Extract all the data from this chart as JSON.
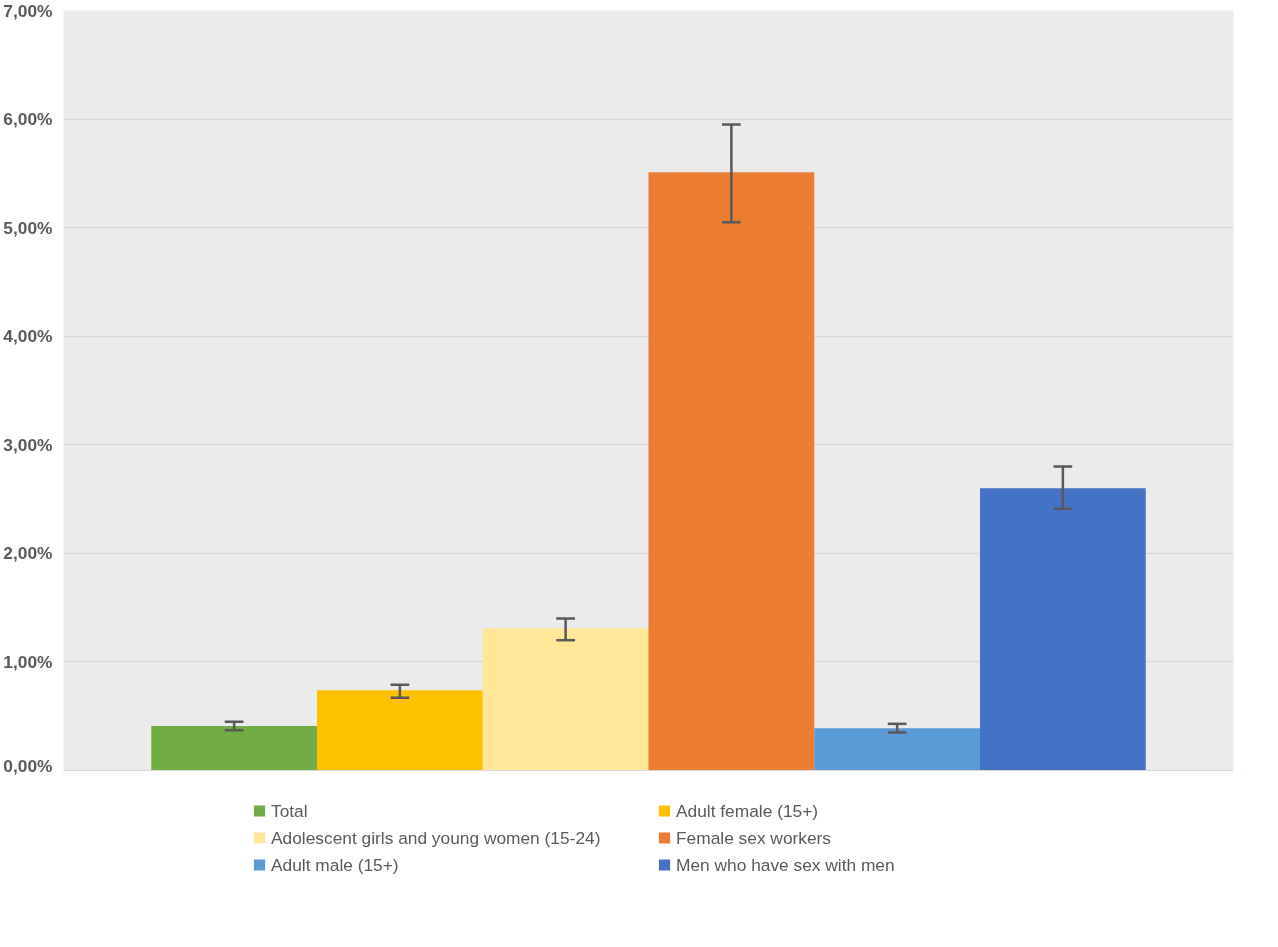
{
  "chart_data": {
    "type": "bar",
    "categories": [
      null
    ],
    "series": [
      {
        "name": "Total",
        "color": "#70ad47",
        "values": [
          0.41
        ],
        "errors": [
          [
            0.37,
            0.45
          ]
        ]
      },
      {
        "name": "Adult female (15+)",
        "color": "#ffc000",
        "values": [
          0.74
        ],
        "errors": [
          [
            0.67,
            0.79
          ]
        ]
      },
      {
        "name": "Adolescent girls and young women (15-24)",
        "color": "#ffe699",
        "values": [
          1.31
        ],
        "errors": [
          [
            1.2,
            1.4
          ]
        ]
      },
      {
        "name": "Female sex workers",
        "color": "#ed7d31",
        "values": [
          5.51
        ],
        "errors": [
          [
            5.05,
            5.95
          ]
        ]
      },
      {
        "name": "Adult male (15+)",
        "color": "#5b9bd5",
        "values": [
          0.39
        ],
        "errors": [
          [
            0.35,
            0.43
          ]
        ]
      },
      {
        "name": "Men who have sex with men",
        "color": "#4472c4",
        "values": [
          2.6
        ],
        "errors": [
          [
            2.41,
            2.8
          ]
        ]
      }
    ],
    "ylim": [
      0,
      7
    ],
    "yticks": [
      {
        "value": 0,
        "label": "0,00%"
      },
      {
        "value": 1,
        "label": "1,00%"
      },
      {
        "value": 2,
        "label": "2,00%"
      },
      {
        "value": 3,
        "label": "3,00%"
      },
      {
        "value": 4,
        "label": "4,00%"
      },
      {
        "value": 5,
        "label": "5,00%"
      },
      {
        "value": 6,
        "label": "6,00%"
      },
      {
        "value": 7,
        "label": "7,00%"
      }
    ],
    "grid": "y",
    "legend": "bottom"
  }
}
